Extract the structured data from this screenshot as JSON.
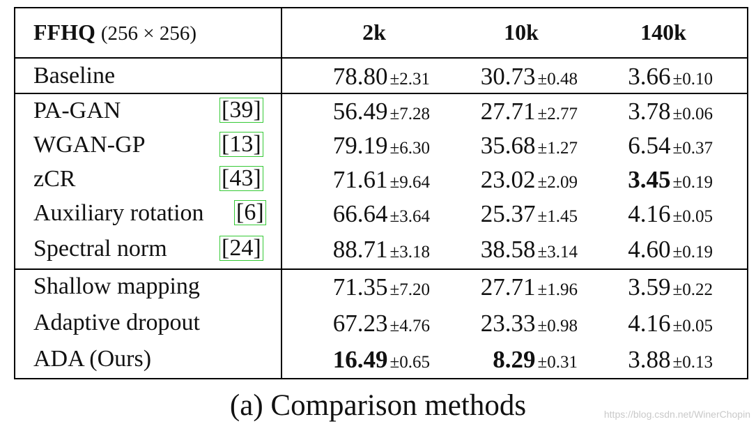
{
  "table": {
    "header": {
      "dataset": "FFHQ",
      "resolution": "(256 × 256)",
      "columns": [
        "2k",
        "10k",
        "140k"
      ]
    },
    "rows": [
      {
        "method": "Baseline",
        "ref": "",
        "values": [
          {
            "mean": "78.80",
            "sd": "±2.31",
            "best": false
          },
          {
            "mean": "30.73",
            "sd": "±0.48",
            "best": false
          },
          {
            "mean": "3.66",
            "sd": "±0.10",
            "best": false
          }
        ]
      },
      {
        "method": "PA-GAN",
        "ref": "[39]",
        "values": [
          {
            "mean": "56.49",
            "sd": "±7.28",
            "best": false
          },
          {
            "mean": "27.71",
            "sd": "±2.77",
            "best": false
          },
          {
            "mean": "3.78",
            "sd": "±0.06",
            "best": false
          }
        ]
      },
      {
        "method": "WGAN-GP",
        "ref": "[13]",
        "values": [
          {
            "mean": "79.19",
            "sd": "±6.30",
            "best": false
          },
          {
            "mean": "35.68",
            "sd": "±1.27",
            "best": false
          },
          {
            "mean": "6.54",
            "sd": "±0.37",
            "best": false
          }
        ]
      },
      {
        "method": "zCR",
        "ref": "[43]",
        "values": [
          {
            "mean": "71.61",
            "sd": "±9.64",
            "best": false
          },
          {
            "mean": "23.02",
            "sd": "±2.09",
            "best": false
          },
          {
            "mean": "3.45",
            "sd": "±0.19",
            "best": true
          }
        ]
      },
      {
        "method": "Auxiliary rotation",
        "ref": "[6]",
        "values": [
          {
            "mean": "66.64",
            "sd": "±3.64",
            "best": false
          },
          {
            "mean": "25.37",
            "sd": "±1.45",
            "best": false
          },
          {
            "mean": "4.16",
            "sd": "±0.05",
            "best": false
          }
        ]
      },
      {
        "method": "Spectral norm",
        "ref": "[24]",
        "values": [
          {
            "mean": "88.71",
            "sd": "±3.18",
            "best": false
          },
          {
            "mean": "38.58",
            "sd": "±3.14",
            "best": false
          },
          {
            "mean": "4.60",
            "sd": "±0.19",
            "best": false
          }
        ]
      },
      {
        "method": "Shallow mapping",
        "ref": "",
        "values": [
          {
            "mean": "71.35",
            "sd": "±7.20",
            "best": false
          },
          {
            "mean": "27.71",
            "sd": "±1.96",
            "best": false
          },
          {
            "mean": "3.59",
            "sd": "±0.22",
            "best": false
          }
        ]
      },
      {
        "method": "Adaptive dropout",
        "ref": "",
        "values": [
          {
            "mean": "67.23",
            "sd": "±4.76",
            "best": false
          },
          {
            "mean": "23.33",
            "sd": "±0.98",
            "best": false
          },
          {
            "mean": "4.16",
            "sd": "±0.05",
            "best": false
          }
        ]
      },
      {
        "method": "ADA (Ours)",
        "ref": "",
        "values": [
          {
            "mean": "16.49",
            "sd": "±0.65",
            "best": true
          },
          {
            "mean": "8.29",
            "sd": "±0.31",
            "best": true
          },
          {
            "mean": "3.88",
            "sd": "±0.13",
            "best": false
          }
        ]
      }
    ]
  },
  "caption": "(a) Comparison methods",
  "watermark": "https://blog.csdn.net/WinerChopin",
  "colors": {
    "reference_box": "#35c935",
    "rule": "#000000"
  }
}
